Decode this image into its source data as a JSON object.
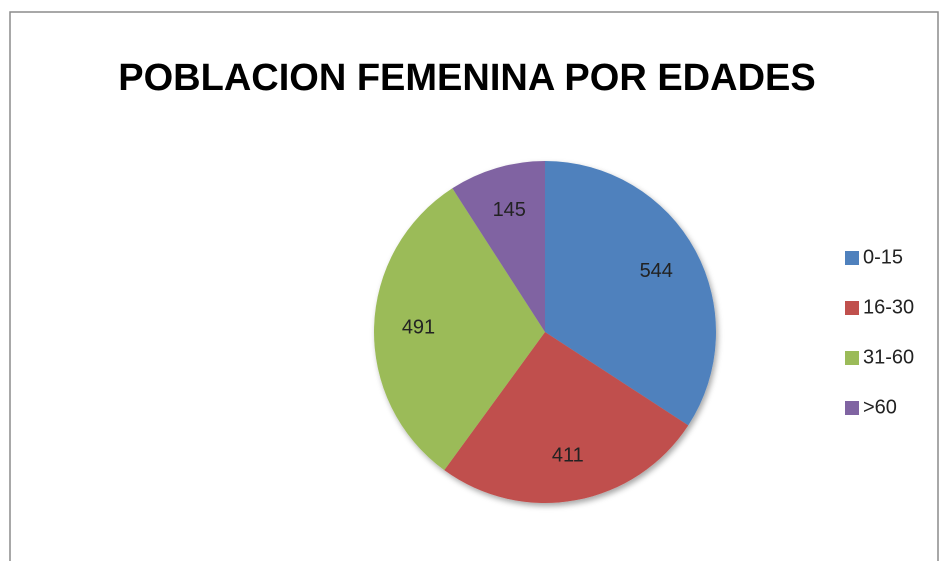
{
  "chart_data": {
    "type": "pie",
    "title": "POBLACION FEMENINA POR EDADES",
    "categories": [
      "0-15",
      "16-30",
      "31-60",
      ">60"
    ],
    "values": [
      544,
      411,
      491,
      145
    ],
    "colors": [
      "#4f81bd",
      "#c0504d",
      "#9bbb59",
      "#8064a2"
    ],
    "legend": "right"
  }
}
